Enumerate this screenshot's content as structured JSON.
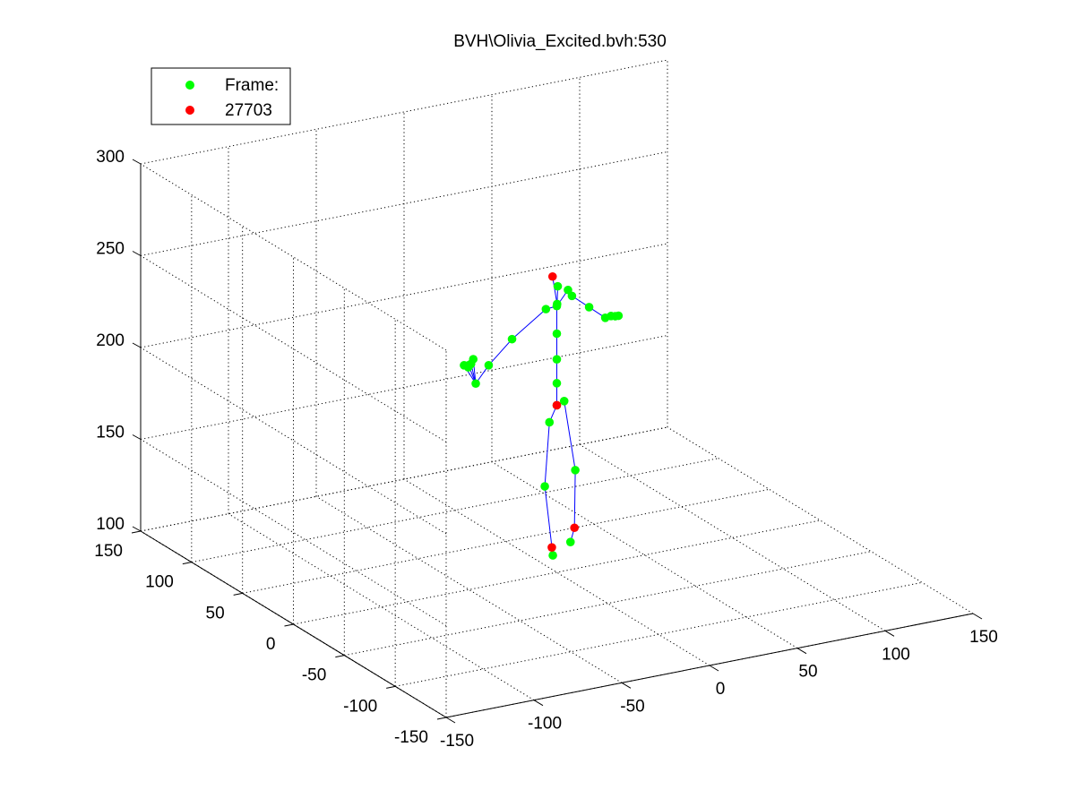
{
  "chart_data": {
    "type": "scatter",
    "title": "BVH\\Olivia_Excited.bvh:530",
    "projection": "3d",
    "grid": true,
    "legend_position": "top-left",
    "legend": [
      {
        "label": "Frame:",
        "color": "#00ff00"
      },
      {
        "label": "27703",
        "color": "#ff0000"
      }
    ],
    "xlim": [
      -150,
      150
    ],
    "ylim": [
      -150,
      150
    ],
    "zlim": [
      100,
      300
    ],
    "x_ticks": [
      "-150",
      "-100",
      "-50",
      "0",
      "50",
      "100",
      "150"
    ],
    "y_ticks": [
      "-150",
      "-100",
      "-50",
      "0",
      "50",
      "100",
      "150"
    ],
    "z_ticks": [
      "100",
      "150",
      "200",
      "250",
      "300"
    ],
    "bone_color": "#0000ff",
    "joint_color": "#00ff00",
    "root_color": "#ff0000",
    "series": [
      {
        "name": "Frame:",
        "color": "#00ff00",
        "points": [
          [
            0,
            0,
            191
          ],
          [
            -10,
            -10,
            187
          ],
          [
            10,
            10,
            188
          ],
          [
            -8,
            -2,
            149
          ],
          [
            14,
            6,
            151
          ],
          [
            -4,
            -3,
            111
          ],
          [
            13,
            9,
            111
          ],
          [
            0,
            0,
            203
          ],
          [
            0,
            0,
            216
          ],
          [
            0,
            0,
            230
          ],
          [
            0,
            0,
            245
          ],
          [
            4,
            6,
            253
          ],
          [
            -1,
            -2,
            247
          ],
          [
            11,
            8,
            249
          ],
          [
            -12,
            -10,
            249
          ],
          [
            -40,
            -25,
            243
          ],
          [
            -62,
            -40,
            238
          ],
          [
            -74,
            -48,
            233
          ],
          [
            -79,
            -52,
            246
          ],
          [
            -81,
            -53,
            246
          ],
          [
            -83,
            -52,
            246
          ],
          [
            -80,
            -51,
            244
          ],
          [
            -76,
            -49,
            247
          ],
          [
            15,
            11,
            244
          ],
          [
            30,
            20,
            232
          ],
          [
            45,
            30,
            220
          ],
          [
            50,
            33,
            219
          ],
          [
            53,
            34,
            218
          ],
          [
            56,
            36,
            217
          ]
        ]
      },
      {
        "name": "27703",
        "color": "#ff0000",
        "points": [
          [
            0,
            0,
            191
          ],
          [
            -3,
            -1,
            262
          ],
          [
            -4,
            -2,
            115
          ],
          [
            17,
            12,
            117
          ]
        ]
      }
    ],
    "bones": [
      [
        [
          0,
          0,
          191
        ],
        [
          -10,
          -10,
          187
        ]
      ],
      [
        [
          0,
          0,
          191
        ],
        [
          10,
          10,
          188
        ]
      ],
      [
        [
          -10,
          -10,
          187
        ],
        [
          -8,
          -2,
          149
        ]
      ],
      [
        [
          -8,
          -2,
          149
        ],
        [
          -4,
          -3,
          111
        ]
      ],
      [
        [
          -4,
          -3,
          111
        ],
        [
          -4,
          -2,
          115
        ]
      ],
      [
        [
          10,
          10,
          188
        ],
        [
          14,
          6,
          151
        ]
      ],
      [
        [
          14,
          6,
          151
        ],
        [
          17,
          12,
          117
        ]
      ],
      [
        [
          17,
          12,
          117
        ],
        [
          13,
          9,
          111
        ]
      ],
      [
        [
          0,
          0,
          191
        ],
        [
          0,
          0,
          203
        ]
      ],
      [
        [
          0,
          0,
          203
        ],
        [
          0,
          0,
          216
        ]
      ],
      [
        [
          0,
          0,
          216
        ],
        [
          0,
          0,
          230
        ]
      ],
      [
        [
          0,
          0,
          230
        ],
        [
          0,
          0,
          245
        ]
      ],
      [
        [
          0,
          0,
          245
        ],
        [
          -1,
          -2,
          247
        ]
      ],
      [
        [
          -1,
          -2,
          247
        ],
        [
          4,
          6,
          253
        ]
      ],
      [
        [
          -1,
          -2,
          247
        ],
        [
          -3,
          -1,
          262
        ]
      ],
      [
        [
          0,
          0,
          245
        ],
        [
          11,
          8,
          249
        ]
      ],
      [
        [
          0,
          0,
          245
        ],
        [
          -12,
          -10,
          249
        ]
      ],
      [
        [
          -12,
          -10,
          249
        ],
        [
          -40,
          -25,
          243
        ]
      ],
      [
        [
          -40,
          -25,
          243
        ],
        [
          -62,
          -40,
          238
        ]
      ],
      [
        [
          -62,
          -40,
          238
        ],
        [
          -74,
          -48,
          233
        ]
      ],
      [
        [
          -74,
          -48,
          233
        ],
        [
          -79,
          -52,
          246
        ]
      ],
      [
        [
          -74,
          -48,
          233
        ],
        [
          -81,
          -53,
          246
        ]
      ],
      [
        [
          -74,
          -48,
          233
        ],
        [
          -83,
          -52,
          246
        ]
      ],
      [
        [
          -74,
          -48,
          233
        ],
        [
          -76,
          -49,
          247
        ]
      ],
      [
        [
          11,
          8,
          249
        ],
        [
          15,
          11,
          244
        ]
      ],
      [
        [
          15,
          11,
          244
        ],
        [
          30,
          20,
          232
        ]
      ],
      [
        [
          30,
          20,
          232
        ],
        [
          45,
          30,
          220
        ]
      ],
      [
        [
          45,
          30,
          220
        ],
        [
          50,
          33,
          219
        ]
      ],
      [
        [
          50,
          33,
          219
        ],
        [
          53,
          34,
          218
        ]
      ],
      [
        [
          53,
          34,
          218
        ],
        [
          56,
          36,
          217
        ]
      ]
    ]
  }
}
